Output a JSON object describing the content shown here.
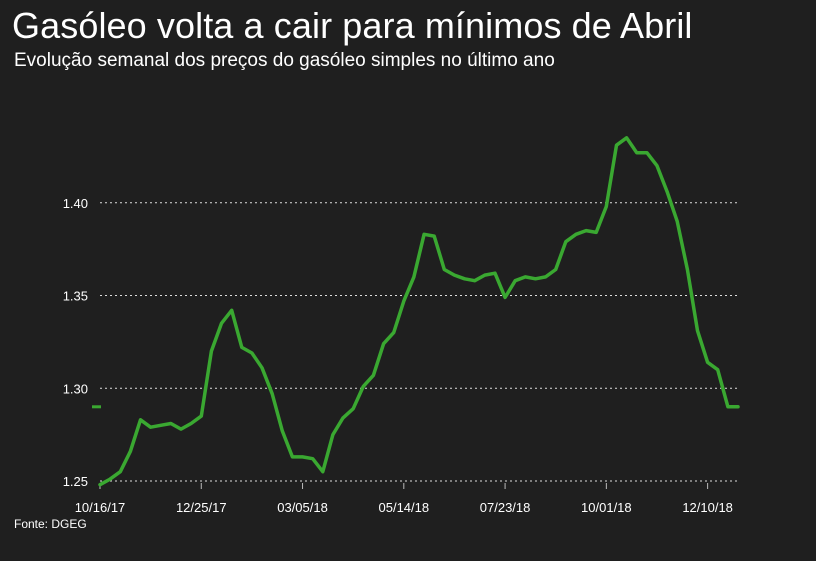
{
  "title": "Gasóleo volta a cair para mínimos de Abril",
  "subtitle": "Evolução semanal dos preços do gasóleo simples no último ano",
  "source": "Fonte: DGEG",
  "colors": {
    "background": "#1f1f1f",
    "line": "#3aa831",
    "grid": "#dddddd",
    "text": "#ffffff"
  },
  "chart_data": {
    "type": "line",
    "title": "",
    "xlabel": "",
    "ylabel": "",
    "ylim": [
      1.25,
      1.45
    ],
    "grid": true,
    "legend": "none",
    "y_ticks": [
      1.25,
      1.3,
      1.35,
      1.4
    ],
    "y_tick_labels": [
      "1.25",
      "1.30",
      "1.35",
      "1.40"
    ],
    "x_tick_labels": [
      "10/16/17",
      "12/25/17",
      "03/05/18",
      "05/14/18",
      "07/23/18",
      "10/01/18",
      "12/10/18"
    ],
    "x_tick_weeks": [
      0,
      10,
      20,
      30,
      40,
      50,
      60
    ],
    "marker_value": 1.29,
    "series": [
      {
        "weeks": [
          0,
          1,
          2,
          3,
          4,
          5,
          6,
          7,
          8,
          9,
          10,
          11,
          12,
          13,
          14,
          15,
          16,
          17,
          18,
          19,
          20,
          21,
          22,
          23,
          24,
          25,
          26,
          27,
          28,
          29,
          30,
          31,
          32,
          33,
          34,
          35,
          36,
          37,
          38,
          39,
          40,
          41,
          42,
          43,
          44,
          45,
          46,
          47,
          48,
          49,
          50,
          51,
          52,
          53,
          54,
          55,
          56,
          57,
          58,
          59,
          60,
          61,
          62,
          63
        ],
        "values": [
          1.248,
          1.251,
          1.255,
          1.266,
          1.283,
          1.279,
          1.28,
          1.281,
          1.278,
          1.281,
          1.285,
          1.32,
          1.335,
          1.342,
          1.322,
          1.319,
          1.311,
          1.297,
          1.277,
          1.263,
          1.263,
          1.262,
          1.255,
          1.275,
          1.284,
          1.289,
          1.301,
          1.307,
          1.324,
          1.33,
          1.347,
          1.36,
          1.383,
          1.382,
          1.364,
          1.361,
          1.359,
          1.358,
          1.361,
          1.362,
          1.349,
          1.358,
          1.36,
          1.359,
          1.36,
          1.364,
          1.379,
          1.383,
          1.385,
          1.384,
          1.398,
          1.431,
          1.435,
          1.427,
          1.427,
          1.42,
          1.406,
          1.39,
          1.364,
          1.331,
          1.314,
          1.31,
          1.29,
          1.29
        ]
      }
    ]
  }
}
